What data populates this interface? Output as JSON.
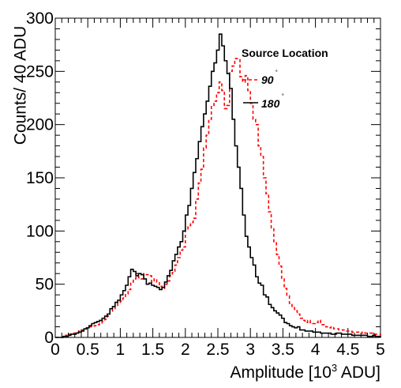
{
  "chart_data": {
    "type": "histogram",
    "xlabel_prefix": "Amplitude [10",
    "xlabel_sup": "3",
    "xlabel_suffix": " ADU]",
    "ylabel": "Counts/ 40 ADU",
    "xlim": [
      0,
      5
    ],
    "ylim": [
      0,
      300
    ],
    "xticks": [
      "0",
      "0.5",
      "1",
      "1.5",
      "2",
      "2.5",
      "3",
      "3.5",
      "4",
      "4.5",
      "5"
    ],
    "yticks": [
      "0",
      "50",
      "100",
      "150",
      "200",
      "250",
      "300"
    ],
    "grid": false,
    "legend": {
      "title": "Source Location",
      "position": "top-right",
      "entries": [
        {
          "label": "90",
          "sup": "˚",
          "color": "#ff0000",
          "style": "dashed"
        },
        {
          "label": "180",
          "sup": "˚",
          "color": "#000000",
          "style": "solid"
        }
      ]
    },
    "bin_width": 0.04,
    "x_start": 0.0,
    "series": [
      {
        "name": "90",
        "color": "#ff0000",
        "style": "dashed",
        "values": [
          0,
          0,
          0,
          1,
          2,
          3,
          4,
          4,
          5,
          6,
          7,
          8,
          9,
          10,
          10,
          11,
          12,
          13,
          15,
          17,
          20,
          24,
          27,
          30,
          33,
          34,
          37,
          41,
          45,
          52,
          55,
          60,
          56,
          55,
          60,
          59,
          58,
          52,
          55,
          52,
          48,
          46,
          50,
          53,
          58,
          61,
          68,
          75,
          82,
          85,
          102,
          105,
          108,
          112,
          130,
          145,
          158,
          178,
          190,
          205,
          218,
          222,
          230,
          240,
          232,
          215,
          218,
          250,
          255,
          262,
          261,
          245,
          240,
          246,
          232,
          220,
          205,
          200,
          180,
          170,
          150,
          135,
          118,
          103,
          90,
          78,
          67,
          55,
          46,
          39,
          32,
          28,
          25,
          22,
          18,
          16,
          14,
          16,
          14,
          13,
          14,
          16,
          12,
          12,
          10,
          9,
          10,
          8,
          8,
          7,
          7,
          6,
          6,
          6,
          5,
          5,
          5,
          4,
          5,
          4,
          4,
          4,
          3,
          3,
          3
        ]
      },
      {
        "name": "180",
        "color": "#000000",
        "style": "solid",
        "values": [
          0,
          0,
          0,
          1,
          1,
          2,
          3,
          3,
          4,
          5,
          6,
          8,
          9,
          11,
          13,
          14,
          15,
          16,
          18,
          20,
          22,
          27,
          29,
          33,
          35,
          40,
          44,
          49,
          57,
          64,
          62,
          58,
          60,
          59,
          55,
          50,
          51,
          49,
          48,
          47,
          45,
          47,
          52,
          58,
          63,
          72,
          78,
          85,
          90,
          100,
          115,
          124,
          140,
          155,
          168,
          184,
          198,
          210,
          222,
          236,
          250,
          258,
          270,
          285,
          274,
          260,
          248,
          234,
          205,
          180,
          160,
          140,
          115,
          95,
          85,
          75,
          68,
          57,
          51,
          49,
          40,
          38,
          31,
          28,
          25,
          23,
          21,
          18,
          14,
          13,
          11,
          10,
          9,
          10,
          7,
          7,
          6,
          6,
          6,
          5,
          5,
          5,
          4,
          4,
          4,
          4,
          3,
          3,
          4,
          4,
          3,
          3,
          3,
          3,
          2,
          2,
          2,
          2,
          2,
          2,
          1,
          1,
          2,
          1,
          1
        ]
      }
    ]
  }
}
